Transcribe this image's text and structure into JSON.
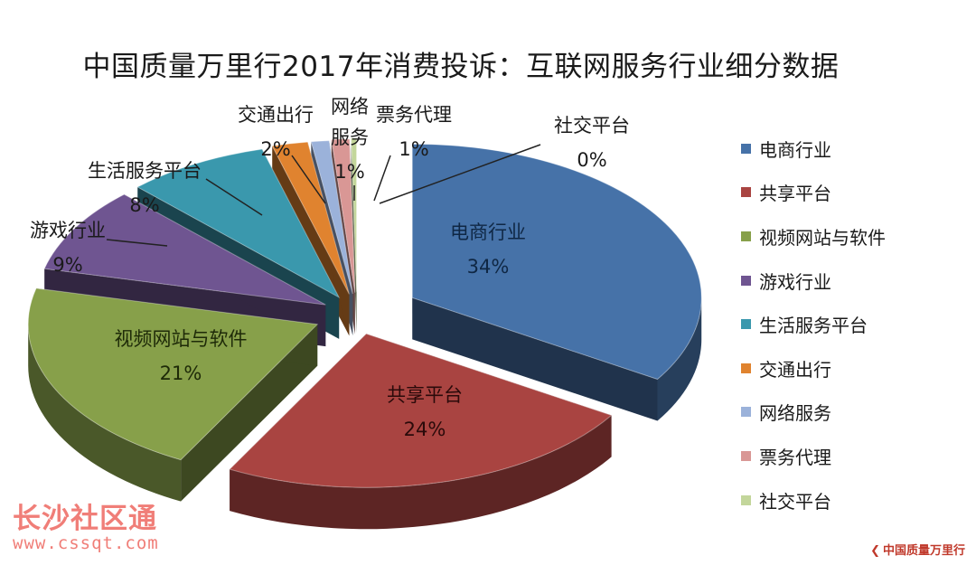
{
  "chart_data": {
    "type": "pie",
    "title": "中国质量万里行2017年消费投诉：互联网服务行业细分数据",
    "legend_position": "right",
    "slices": [
      {
        "label": "电商行业",
        "percent_label": "34%",
        "value": 34,
        "color": "#4672a8"
      },
      {
        "label": "共享平台",
        "percent_label": "24%",
        "value": 24,
        "color": "#a94441"
      },
      {
        "label": "视频网站与软件",
        "percent_label": "21%",
        "value": 21,
        "color": "#87a04a"
      },
      {
        "label": "游戏行业",
        "percent_label": "9%",
        "value": 9,
        "color": "#6f5591"
      },
      {
        "label": "生活服务平台",
        "percent_label": "8%",
        "value": 8,
        "color": "#3a98ad"
      },
      {
        "label": "交通出行",
        "percent_label": "2%",
        "value": 2,
        "color": "#e0832f"
      },
      {
        "label": "网络服务",
        "percent_label": "1%",
        "value": 1,
        "color": "#9bb2da"
      },
      {
        "label": "票务代理",
        "percent_label": "1%",
        "value": 1,
        "color": "#d99795"
      },
      {
        "label": "社交平台",
        "percent_label": "0%",
        "value": 0.3,
        "color": "#c3d69b"
      }
    ]
  },
  "watermark": {
    "main": "长沙社区通",
    "url": "www.cssqt.com"
  },
  "logo": {
    "text": "中国质量万里行"
  }
}
